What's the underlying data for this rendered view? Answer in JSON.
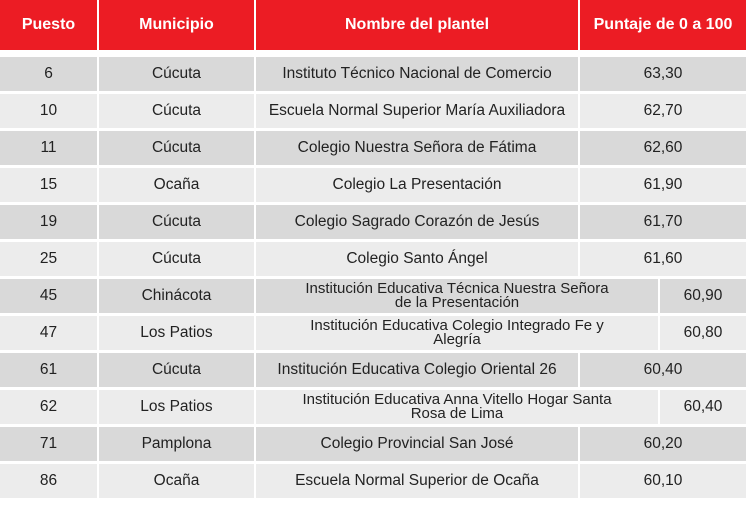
{
  "colors": {
    "header": "#ec1c24",
    "row_dark": "#d9d9d9",
    "row_light": "#ececec"
  },
  "headers": [
    "Puesto",
    "Municipio",
    "Nombre del plantel",
    "Puntaje de 0 a 100"
  ],
  "rows": [
    [
      "6",
      "Cúcuta",
      "Instituto Técnico Nacional de Comercio",
      "63,30"
    ],
    [
      "10",
      "Cúcuta",
      "Escuela Normal Superior María Auxiliadora",
      "62,70"
    ],
    [
      "11",
      "Cúcuta",
      "Colegio Nuestra Señora de Fátima",
      "62,60"
    ],
    [
      "15",
      "Ocaña",
      "Colegio La Presentación",
      "61,90"
    ],
    [
      "19",
      "Cúcuta",
      "Colegio Sagrado Corazón de Jesús",
      "61,70"
    ],
    [
      "25",
      "Cúcuta",
      "Colegio Santo Ángel",
      "61,60"
    ],
    [
      "45",
      "Chinácota",
      "Institución Educativa Técnica Nuestra Señora de la Presentación",
      "60,90"
    ],
    [
      "47",
      "Los Patios",
      "Institución Educativa Colegio Integrado Fe y Alegría",
      "60,80"
    ],
    [
      "61",
      "Cúcuta",
      "Institución Educativa Colegio Oriental 26",
      "60,40"
    ],
    [
      "62",
      "Los Patios",
      "Institución Educativa Anna Vitello Hogar Santa Rosa de Lima",
      "60,40"
    ],
    [
      "71",
      "Pamplona",
      "Colegio Provincial San José",
      "60,20"
    ],
    [
      "86",
      "Ocaña",
      "Escuela Normal Superior de Ocaña",
      "60,10"
    ]
  ]
}
